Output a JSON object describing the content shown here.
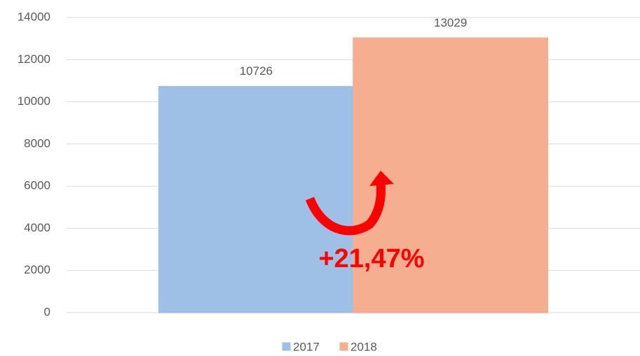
{
  "chart_data": {
    "type": "bar",
    "categories": [
      null
    ],
    "series": [
      {
        "name": "2017",
        "color": "#9fc0e6",
        "values": [
          10726
        ]
      },
      {
        "name": "2018",
        "color": "#f5ae90",
        "values": [
          13029
        ]
      }
    ],
    "ylim": [
      0,
      14000
    ],
    "yticks": [
      0,
      2000,
      4000,
      6000,
      8000,
      10000,
      12000,
      14000
    ],
    "grid": true,
    "legend": "bottom",
    "annotation": "+21,47%"
  }
}
